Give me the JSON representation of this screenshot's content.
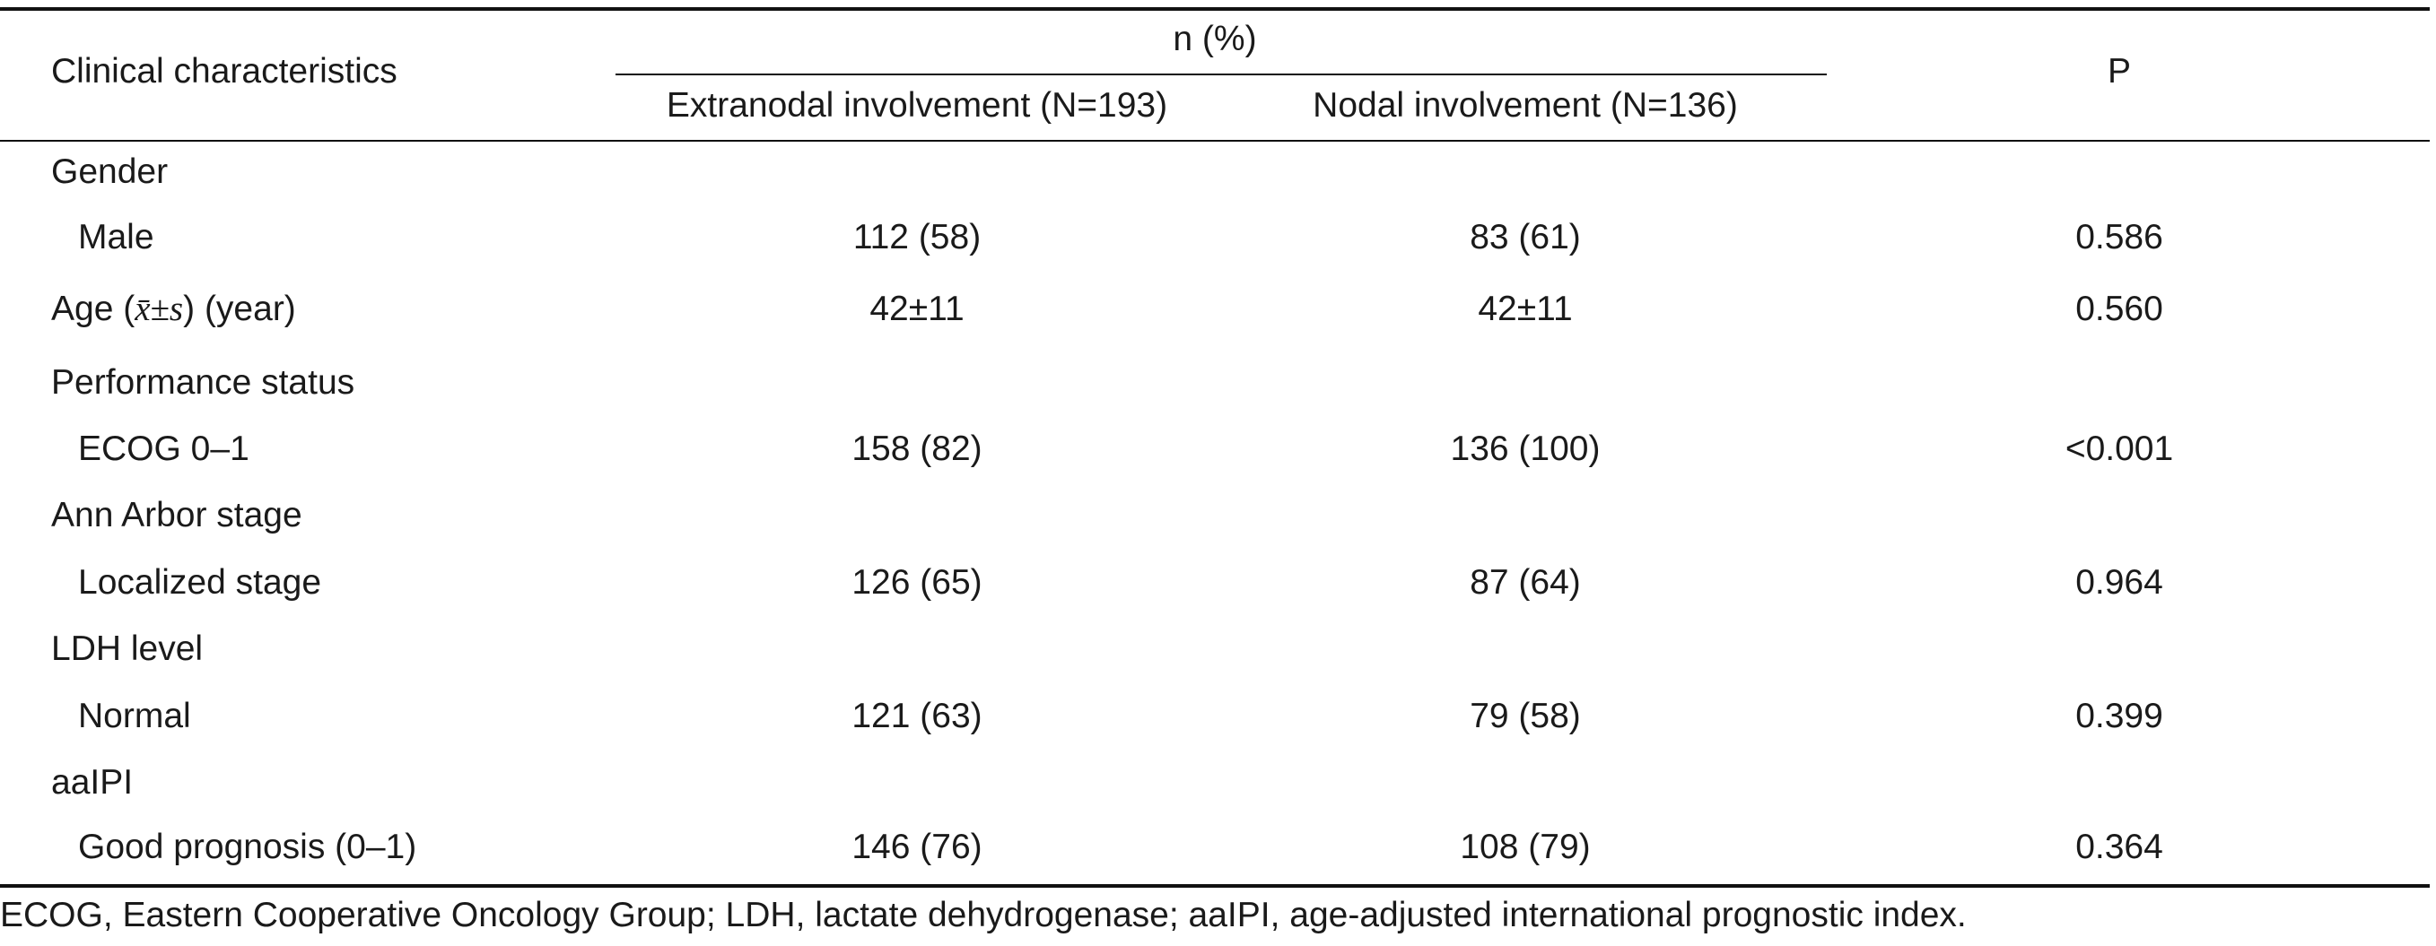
{
  "table": {
    "header": {
      "col_characteristics": "Clinical characteristics",
      "group_header": "n (%)",
      "col_extranodal": "Extranodal involvement (N=193)",
      "col_nodal": "Nodal involvement (N=136)",
      "col_p": "P"
    },
    "rows": [
      {
        "label": "Gender",
        "indent": false,
        "extranodal": "",
        "nodal": "",
        "p": ""
      },
      {
        "label": "Male",
        "indent": true,
        "extranodal": "112 (58)",
        "nodal": "83 (61)",
        "p": "0.586"
      },
      {
        "label_prefix": "Age (",
        "label_math": "x̄±s",
        "label_suffix": ") (year)",
        "indent": false,
        "extranodal": "42±11",
        "nodal": "42±11",
        "p": "0.560"
      },
      {
        "label": "Performance status",
        "indent": false,
        "extranodal": "",
        "nodal": "",
        "p": ""
      },
      {
        "label": "ECOG 0–1",
        "indent": true,
        "extranodal": "158 (82)",
        "nodal": "136 (100)",
        "p": "<0.001"
      },
      {
        "label": "Ann Arbor stage",
        "indent": false,
        "extranodal": "",
        "nodal": "",
        "p": ""
      },
      {
        "label": "Localized stage",
        "indent": true,
        "extranodal": "126 (65)",
        "nodal": "87 (64)",
        "p": "0.964"
      },
      {
        "label": "LDH level",
        "indent": false,
        "extranodal": "",
        "nodal": "",
        "p": ""
      },
      {
        "label": "Normal",
        "indent": true,
        "extranodal": "121 (63)",
        "nodal": "79 (58)",
        "p": "0.399"
      },
      {
        "label": "aaIPI",
        "indent": false,
        "extranodal": "",
        "nodal": "",
        "p": ""
      },
      {
        "label": "Good prognosis (0–1)",
        "indent": true,
        "extranodal": "146 (76)",
        "nodal": "108 (79)",
        "p": "0.364"
      }
    ],
    "footnote": "ECOG, Eastern Cooperative Oncology Group; LDH, lactate dehydrogenase; aaIPI, age-adjusted international prognostic index."
  }
}
